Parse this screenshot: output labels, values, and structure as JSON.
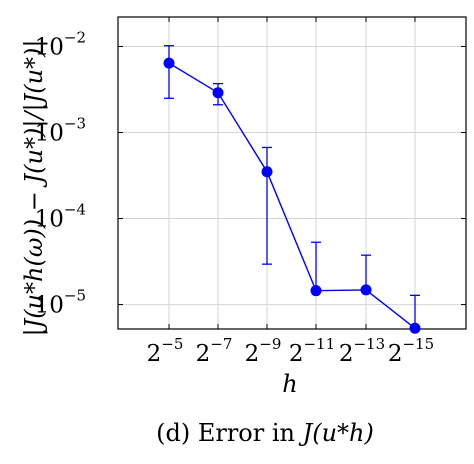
{
  "chart_data": {
    "type": "line",
    "title": "",
    "caption_prefix": "(d) Error in ",
    "caption_math": "J(u*h)",
    "xlabel": "h",
    "ylabel": "|J(u*h(ω)) − J(u*)|/|J(u*)|",
    "xscale": "log2",
    "yscale": "log10",
    "x_ticks": [
      {
        "base": "2",
        "exp": "−5"
      },
      {
        "base": "2",
        "exp": "−7"
      },
      {
        "base": "2",
        "exp": "−9"
      },
      {
        "base": "2",
        "exp": "−11"
      },
      {
        "base": "2",
        "exp": "−13"
      },
      {
        "base": "2",
        "exp": "−15"
      }
    ],
    "y_ticks": [
      {
        "base": "10",
        "exp": "−2",
        "value": 0.01
      },
      {
        "base": "10",
        "exp": "−3",
        "value": 0.001
      },
      {
        "base": "10",
        "exp": "−4",
        "value": 0.0001
      },
      {
        "base": "10",
        "exp": "−5",
        "value": 1e-05
      }
    ],
    "ylim": [
      5.2e-06,
      0.022
    ],
    "grid": true,
    "legend": "none",
    "color": "#0000ff",
    "series": [
      {
        "x": [
          "2^-5",
          "2^-7",
          "2^-9",
          "2^-11",
          "2^-13",
          "2^-15"
        ],
        "values": [
          0.0064,
          0.0029,
          0.00035,
          1.45e-05,
          1.48e-05,
          5.3e-06
        ],
        "err_high": [
          0.0102,
          0.0037,
          0.00067,
          5.3e-05,
          3.75e-05,
          1.28e-05
        ],
        "err_low": [
          0.0025,
          0.0021,
          2.95e-05,
          1.45e-05,
          1.48e-05,
          5.3e-06
        ]
      }
    ]
  }
}
